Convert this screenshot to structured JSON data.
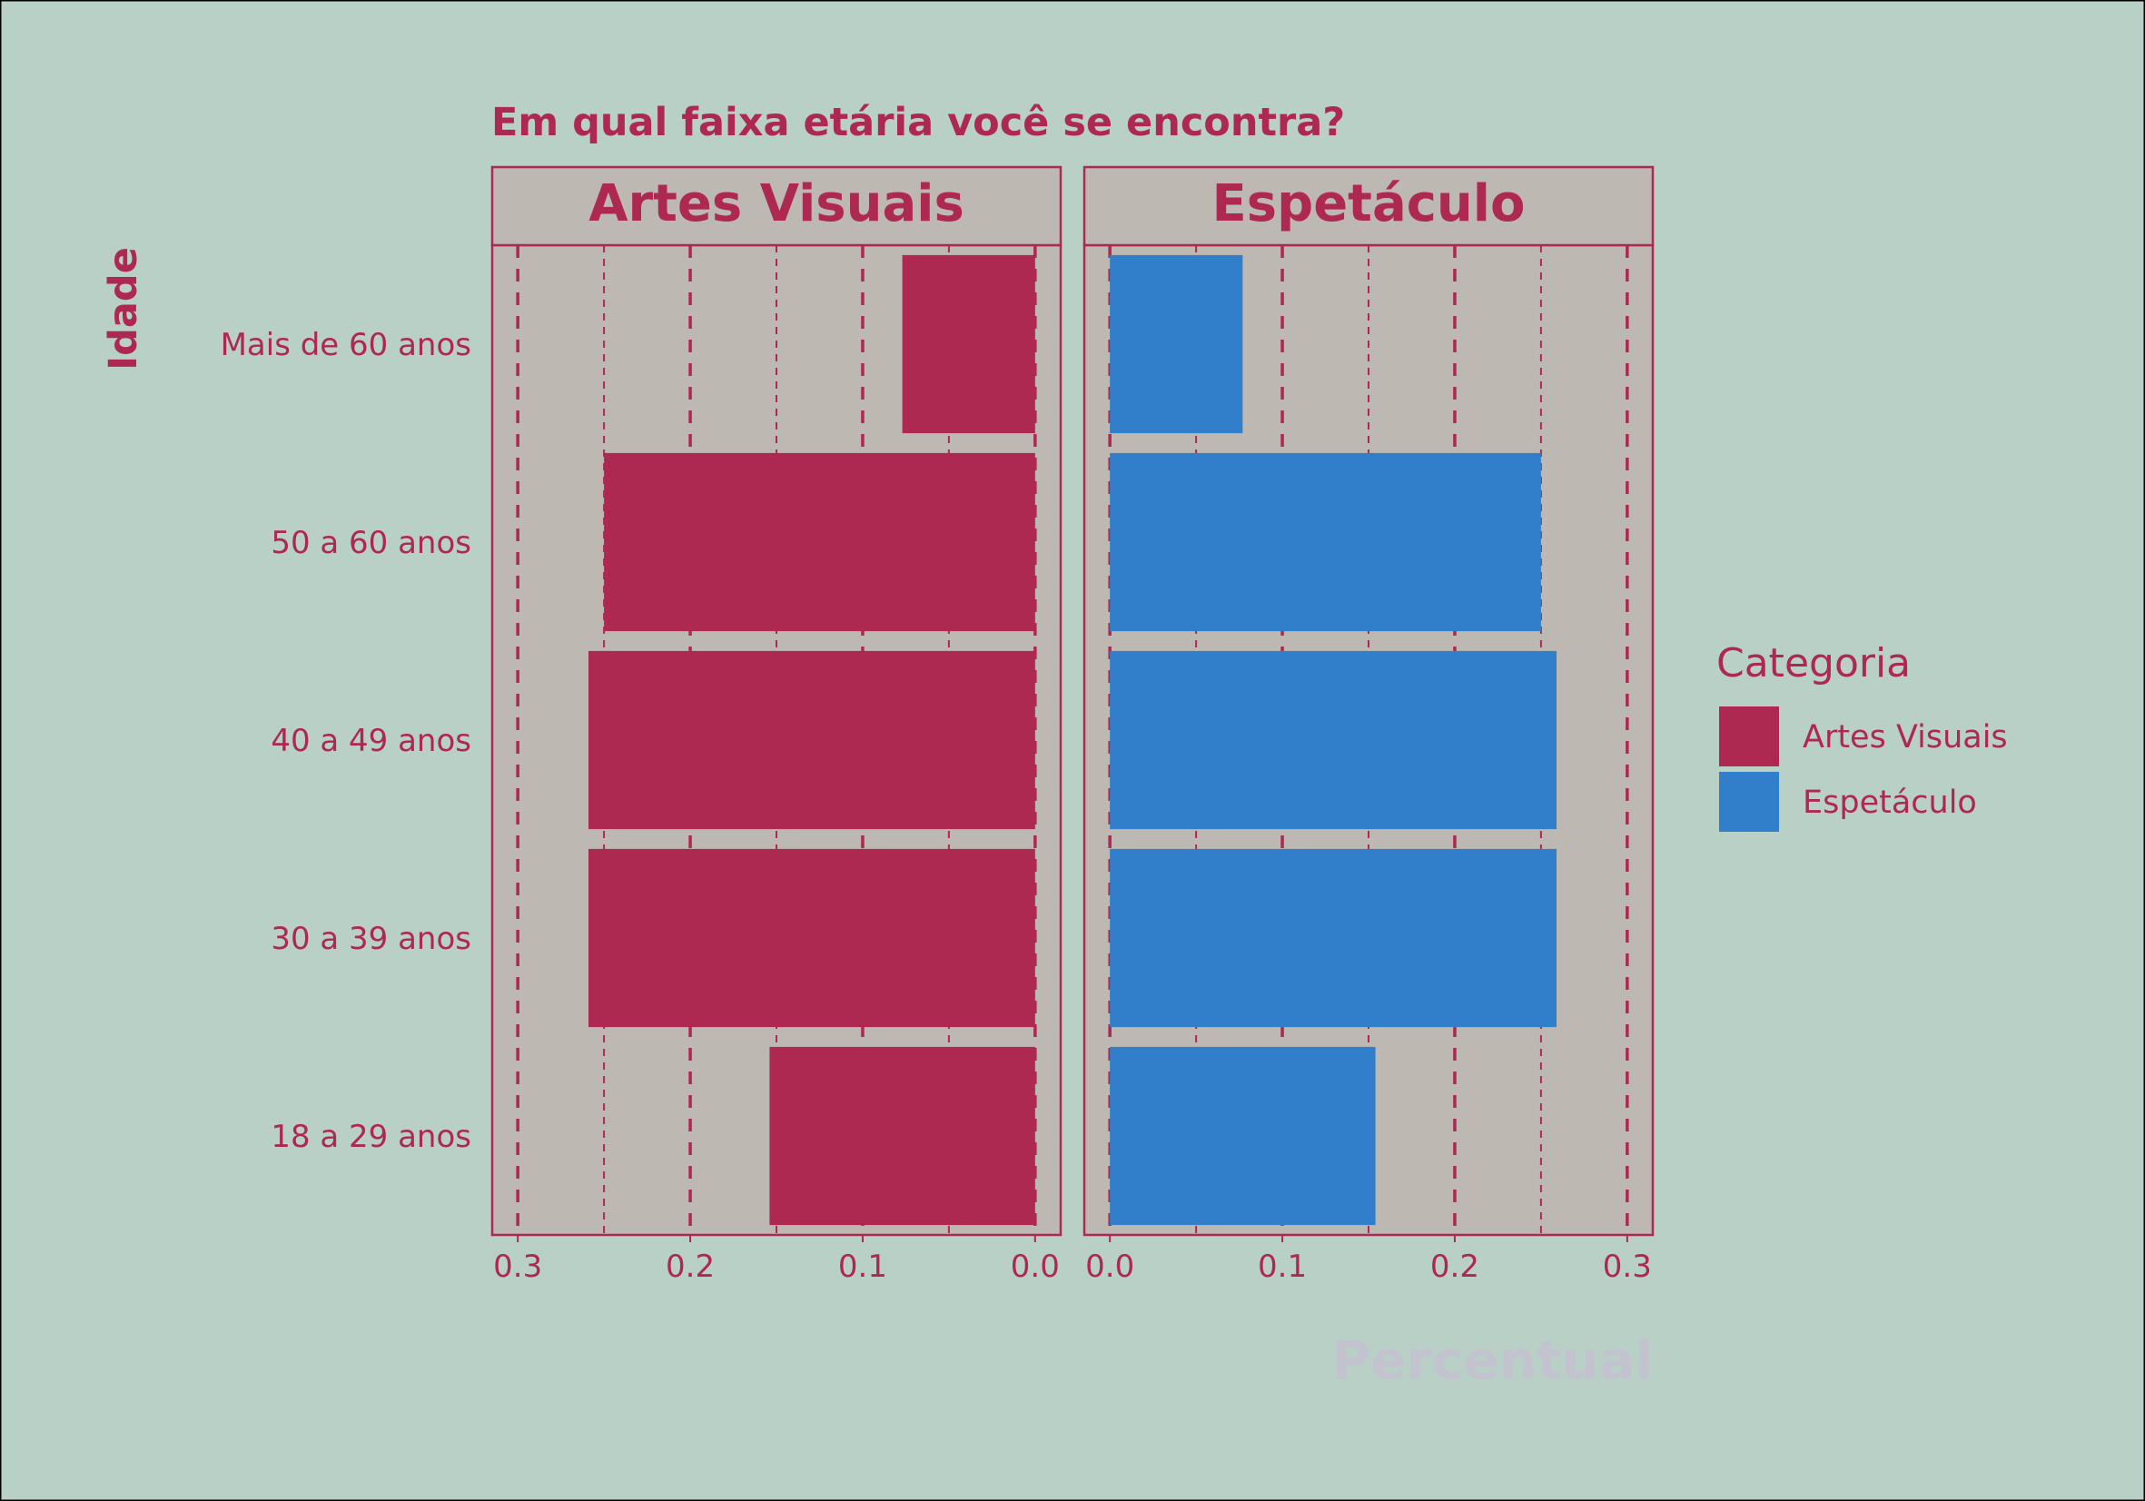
{
  "chart_data": {
    "type": "bar",
    "orientation": "horizontal",
    "title": "Em qual faixa etária você se encontra?",
    "xlabel": "Percentual",
    "ylabel": "Idade",
    "categories": [
      "18 a 29 anos",
      "30 a 39 anos",
      "40 a 49 anos",
      "50 a 60 anos",
      "Mais de 60 anos"
    ],
    "xlim": [
      0,
      0.3
    ],
    "x_ticks": [
      "0.0",
      "0.1",
      "0.2",
      "0.3"
    ],
    "grid": true,
    "panels": [
      {
        "name": "Artes Visuais",
        "direction": "reversed",
        "color": "#ae2952",
        "values": [
          0.154,
          0.259,
          0.259,
          0.25,
          0.077
        ]
      },
      {
        "name": "Espetáculo",
        "direction": "normal",
        "color": "#317fca",
        "values": [
          0.154,
          0.259,
          0.259,
          0.25,
          0.077
        ]
      }
    ],
    "legend": {
      "title": "Categoria",
      "placement": "right",
      "items": [
        {
          "label": "Artes Visuais",
          "color": "#ae2952"
        },
        {
          "label": "Espetáculo",
          "color": "#317fca"
        }
      ]
    },
    "colors": {
      "background": "#b8d0c6",
      "panel": "#beb8b2",
      "text": "#ae2952",
      "xlabel": "#c3c3cf"
    }
  }
}
